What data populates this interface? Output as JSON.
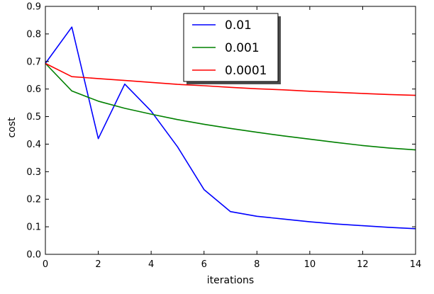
{
  "chart_data": {
    "type": "line",
    "xlabel": "iterations",
    "ylabel": "cost",
    "xlim": [
      0,
      14
    ],
    "ylim": [
      0.0,
      0.9
    ],
    "x_ticks": [
      0,
      2,
      4,
      6,
      8,
      10,
      12,
      14
    ],
    "y_ticks": [
      "0.0",
      "0.1",
      "0.2",
      "0.3",
      "0.4",
      "0.5",
      "0.6",
      "0.7",
      "0.8",
      "0.9"
    ],
    "grid": false,
    "legend_position": "upper-center",
    "x": [
      0,
      1,
      2,
      3,
      4,
      5,
      6,
      7,
      8,
      9,
      10,
      11,
      12,
      13,
      14
    ],
    "series": [
      {
        "name": "0.01",
        "color": "#0000ff",
        "values": [
          0.693,
          0.825,
          0.42,
          0.618,
          0.52,
          0.39,
          0.235,
          0.155,
          0.138,
          0.128,
          0.118,
          0.11,
          0.104,
          0.098,
          0.093
        ]
      },
      {
        "name": "0.001",
        "color": "#008000",
        "values": [
          0.693,
          0.593,
          0.556,
          0.53,
          0.509,
          0.489,
          0.472,
          0.457,
          0.443,
          0.43,
          0.418,
          0.406,
          0.395,
          0.386,
          0.379
        ]
      },
      {
        "name": "0.0001",
        "color": "#ff0000",
        "values": [
          0.693,
          0.645,
          0.638,
          0.631,
          0.624,
          0.617,
          0.612,
          0.606,
          0.601,
          0.597,
          0.592,
          0.588,
          0.584,
          0.58,
          0.577
        ]
      }
    ]
  }
}
